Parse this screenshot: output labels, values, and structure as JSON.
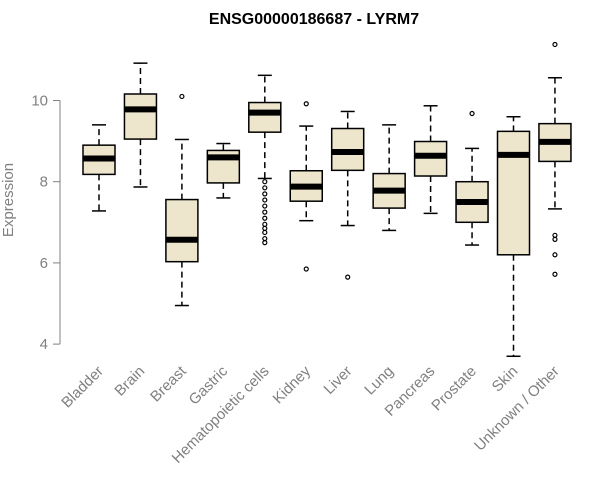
{
  "chart_data": {
    "type": "boxplot",
    "title": "ENSG00000186687 - LYRM7",
    "ylabel": "Expression",
    "xlabel": "",
    "ylim": [
      3.6,
      11.6
    ],
    "yticks": [
      4,
      6,
      8,
      10
    ],
    "box_fill": "#ede6cc",
    "categories": [
      "Bladder",
      "Brain",
      "Breast",
      "Gastric",
      "Hematopoietic cells",
      "Kidney",
      "Liver",
      "Lung",
      "Pancreas",
      "Prostate",
      "Skin",
      "Unknown / Other"
    ],
    "boxes": [
      {
        "name": "Bladder",
        "whisker_low": 7.28,
        "q1": 8.18,
        "median": 8.57,
        "q3": 8.9,
        "whisker_high": 9.4,
        "outliers": []
      },
      {
        "name": "Brain",
        "whisker_low": 7.87,
        "q1": 9.05,
        "median": 9.78,
        "q3": 10.16,
        "whisker_high": 10.92,
        "outliers": []
      },
      {
        "name": "Breast",
        "whisker_low": 4.95,
        "q1": 6.03,
        "median": 6.57,
        "q3": 7.56,
        "whisker_high": 9.04,
        "outliers": [
          10.1
        ]
      },
      {
        "name": "Gastric",
        "whisker_low": 7.6,
        "q1": 7.97,
        "median": 8.6,
        "q3": 8.77,
        "whisker_high": 8.94,
        "outliers": []
      },
      {
        "name": "Hematopoietic cells",
        "whisker_low": 8.08,
        "q1": 9.22,
        "median": 9.7,
        "q3": 9.95,
        "whisker_high": 10.62,
        "outliers": [
          8.0,
          7.85,
          7.7,
          7.55,
          7.4,
          7.25,
          7.1,
          6.95,
          6.85,
          6.75,
          6.6,
          6.5
        ]
      },
      {
        "name": "Kidney",
        "whisker_low": 7.04,
        "q1": 7.52,
        "median": 7.88,
        "q3": 8.27,
        "whisker_high": 9.37,
        "outliers": [
          9.92,
          5.85
        ]
      },
      {
        "name": "Liver",
        "whisker_low": 6.92,
        "q1": 8.28,
        "median": 8.73,
        "q3": 9.31,
        "whisker_high": 9.73,
        "outliers": [
          5.65
        ]
      },
      {
        "name": "Lung",
        "whisker_low": 6.8,
        "q1": 7.35,
        "median": 7.78,
        "q3": 8.2,
        "whisker_high": 9.4,
        "outliers": []
      },
      {
        "name": "Pancreas",
        "whisker_low": 7.22,
        "q1": 8.14,
        "median": 8.64,
        "q3": 8.99,
        "whisker_high": 9.87,
        "outliers": []
      },
      {
        "name": "Prostate",
        "whisker_low": 6.44,
        "q1": 7.0,
        "median": 7.5,
        "q3": 8.0,
        "whisker_high": 8.82,
        "outliers": [
          9.68
        ]
      },
      {
        "name": "Skin",
        "whisker_low": 3.7,
        "q1": 6.2,
        "median": 8.66,
        "q3": 9.24,
        "whisker_high": 9.6,
        "outliers": []
      },
      {
        "name": "Unknown / Other",
        "whisker_low": 7.33,
        "q1": 8.5,
        "median": 8.98,
        "q3": 9.43,
        "whisker_high": 10.56,
        "outliers": [
          11.38,
          6.68,
          6.58,
          6.2,
          5.72
        ]
      }
    ]
  }
}
